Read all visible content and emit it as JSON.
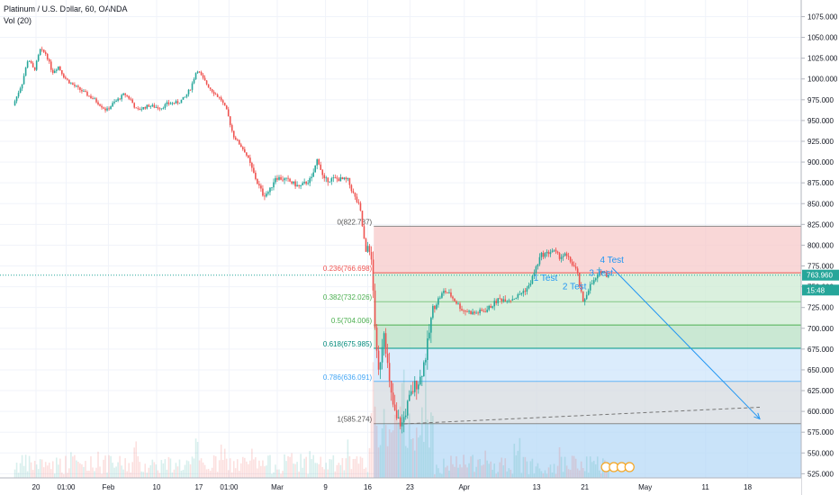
{
  "header": {
    "title": "Platinum / U.S. Dollar, 60, OANDA",
    "volume_label": "Vol (20)"
  },
  "colors": {
    "up": "#26a69a",
    "down": "#ef5350",
    "grid": "#f0f3fa",
    "price_line": "#26a69a",
    "trendline": "#2196f3",
    "annotation": "#2196f3"
  },
  "chart_data": {
    "type": "candlestick",
    "ylim": [
      520,
      1095
    ],
    "y_ticks": [
      525,
      550,
      575,
      600,
      625,
      650,
      675,
      700,
      725,
      750,
      775,
      800,
      825,
      850,
      875,
      900,
      925,
      950,
      975,
      1000,
      1025,
      1050,
      1075
    ],
    "y_tick_labels": [
      "525.000",
      "550.000",
      "575.000",
      "600.000",
      "625.000",
      "650.000",
      "675.000",
      "700.000",
      "725.000",
      "750.000",
      "775.000",
      "800.000",
      "825.000",
      "850.000",
      "875.000",
      "900.000",
      "925.000",
      "950.000",
      "975.000",
      "1000.000",
      "1025.000",
      "1050.000",
      "1075.000"
    ],
    "x_ticks": [
      {
        "label": "20",
        "day": 0
      },
      {
        "label": "01:00",
        "day": 5
      },
      {
        "label": "Feb",
        "day": 12
      },
      {
        "label": "10",
        "day": 20
      },
      {
        "label": "17",
        "day": 27
      },
      {
        "label": "01:00",
        "day": 32
      },
      {
        "label": "Mar",
        "day": 40
      },
      {
        "label": "9",
        "day": 48
      },
      {
        "label": "16",
        "day": 55
      },
      {
        "label": "23",
        "day": 62
      },
      {
        "label": "Apr",
        "day": 71
      },
      {
        "label": "13",
        "day": 83
      },
      {
        "label": "21",
        "day": 91
      },
      {
        "label": "May",
        "day": 101
      },
      {
        "label": "11",
        "day": 111
      },
      {
        "label": "18",
        "day": 118
      }
    ],
    "price_path": [
      {
        "day": -3.5,
        "price": 968
      },
      {
        "day": -2,
        "price": 995
      },
      {
        "day": -1,
        "price": 1025
      },
      {
        "day": 0,
        "price": 1010
      },
      {
        "day": 1,
        "price": 1035
      },
      {
        "day": 2,
        "price": 1030
      },
      {
        "day": 3,
        "price": 1008
      },
      {
        "day": 4,
        "price": 1015
      },
      {
        "day": 5,
        "price": 1002
      },
      {
        "day": 6,
        "price": 995
      },
      {
        "day": 8,
        "price": 985
      },
      {
        "day": 10,
        "price": 975
      },
      {
        "day": 12,
        "price": 962
      },
      {
        "day": 13,
        "price": 970
      },
      {
        "day": 15,
        "price": 982
      },
      {
        "day": 16,
        "price": 975
      },
      {
        "day": 17,
        "price": 962
      },
      {
        "day": 19,
        "price": 968
      },
      {
        "day": 21,
        "price": 965
      },
      {
        "day": 22,
        "price": 970
      },
      {
        "day": 24,
        "price": 972
      },
      {
        "day": 25,
        "price": 978
      },
      {
        "day": 26,
        "price": 990
      },
      {
        "day": 27,
        "price": 1012
      },
      {
        "day": 28,
        "price": 1000
      },
      {
        "day": 29,
        "price": 990
      },
      {
        "day": 30,
        "price": 982
      },
      {
        "day": 31,
        "price": 975
      },
      {
        "day": 32,
        "price": 960
      },
      {
        "day": 33,
        "price": 932
      },
      {
        "day": 35,
        "price": 912
      },
      {
        "day": 37,
        "price": 875
      },
      {
        "day": 38,
        "price": 860
      },
      {
        "day": 39,
        "price": 865
      },
      {
        "day": 40,
        "price": 882
      },
      {
        "day": 42,
        "price": 878
      },
      {
        "day": 44,
        "price": 870
      },
      {
        "day": 46,
        "price": 880
      },
      {
        "day": 47,
        "price": 905
      },
      {
        "day": 48,
        "price": 878
      },
      {
        "day": 50,
        "price": 880
      },
      {
        "day": 52,
        "price": 878
      },
      {
        "day": 53,
        "price": 860
      },
      {
        "day": 54,
        "price": 845
      },
      {
        "day": 55,
        "price": 790
      },
      {
        "day": 55.5,
        "price": 805
      },
      {
        "day": 56,
        "price": 770
      },
      {
        "day": 57,
        "price": 640
      },
      {
        "day": 58,
        "price": 700
      },
      {
        "day": 59,
        "price": 625
      },
      {
        "day": 60,
        "price": 590
      },
      {
        "day": 61,
        "price": 585
      },
      {
        "day": 62,
        "price": 610
      },
      {
        "day": 63,
        "price": 630
      },
      {
        "day": 64,
        "price": 640
      },
      {
        "day": 65,
        "price": 670
      },
      {
        "day": 66,
        "price": 720
      },
      {
        "day": 67,
        "price": 735
      },
      {
        "day": 68,
        "price": 745
      },
      {
        "day": 69,
        "price": 740
      },
      {
        "day": 71,
        "price": 722
      },
      {
        "day": 73,
        "price": 718
      },
      {
        "day": 75,
        "price": 722
      },
      {
        "day": 77,
        "price": 735
      },
      {
        "day": 79,
        "price": 735
      },
      {
        "day": 80,
        "price": 738
      },
      {
        "day": 82,
        "price": 750
      },
      {
        "day": 84,
        "price": 788
      },
      {
        "day": 85,
        "price": 790
      },
      {
        "day": 86,
        "price": 794
      },
      {
        "day": 87,
        "price": 786
      },
      {
        "day": 88,
        "price": 788
      },
      {
        "day": 89,
        "price": 780
      },
      {
        "day": 90,
        "price": 768
      },
      {
        "day": 91,
        "price": 730
      },
      {
        "day": 92,
        "price": 750
      },
      {
        "day": 93,
        "price": 758
      },
      {
        "day": 94,
        "price": 770
      },
      {
        "day": 95,
        "price": 764
      }
    ],
    "fib_levels": [
      {
        "label": "0(822.737)",
        "price": 822.737
      },
      {
        "label": "0.236(766.698)",
        "price": 766.698
      },
      {
        "label": "0.382(732.026)",
        "price": 732.026
      },
      {
        "label": "0.5(704.006)",
        "price": 704.006
      },
      {
        "label": "0.618(675.985)",
        "price": 675.985
      },
      {
        "label": "0.786(636.091)",
        "price": 636.091
      },
      {
        "label": "1(585.274)",
        "price": 585.274
      }
    ],
    "fib_zone_colors": [
      "#f7c9c9",
      "#cdebd3",
      "#cdebd3",
      "#b8e0c4",
      "#cfe6fb",
      "#d6dbe0",
      "#b7d9f7"
    ],
    "fib_line_colors": [
      "#888888",
      "#ef5350",
      "#81c784",
      "#4caf50",
      "#009688",
      "#64b5f6",
      "#888888"
    ],
    "fib_label_colors": [
      "#555555",
      "#ef5350",
      "#4caf50",
      "#4caf50",
      "#00897b",
      "#42a5f5",
      "#555555"
    ],
    "fib_start_day": 56,
    "annotations": [
      {
        "label": "1 Test",
        "day": 82.5,
        "price": 757
      },
      {
        "label": "2 Test",
        "day": 87.3,
        "price": 747
      },
      {
        "label": "3 Test",
        "day": 91.7,
        "price": 763
      },
      {
        "label": "4 Test",
        "day": 93.5,
        "price": 779
      }
    ],
    "trendline": {
      "from": {
        "day": 95.5,
        "price": 773
      },
      "to": {
        "day": 120,
        "price": 591
      }
    },
    "dashed_line": {
      "from": {
        "day": 61,
        "price": 585
      },
      "to": {
        "day": 120,
        "price": 605
      }
    },
    "current_price": {
      "label": "763.960",
      "price": 763.96
    },
    "countdown": {
      "label": "15:48",
      "price": 746
    }
  }
}
